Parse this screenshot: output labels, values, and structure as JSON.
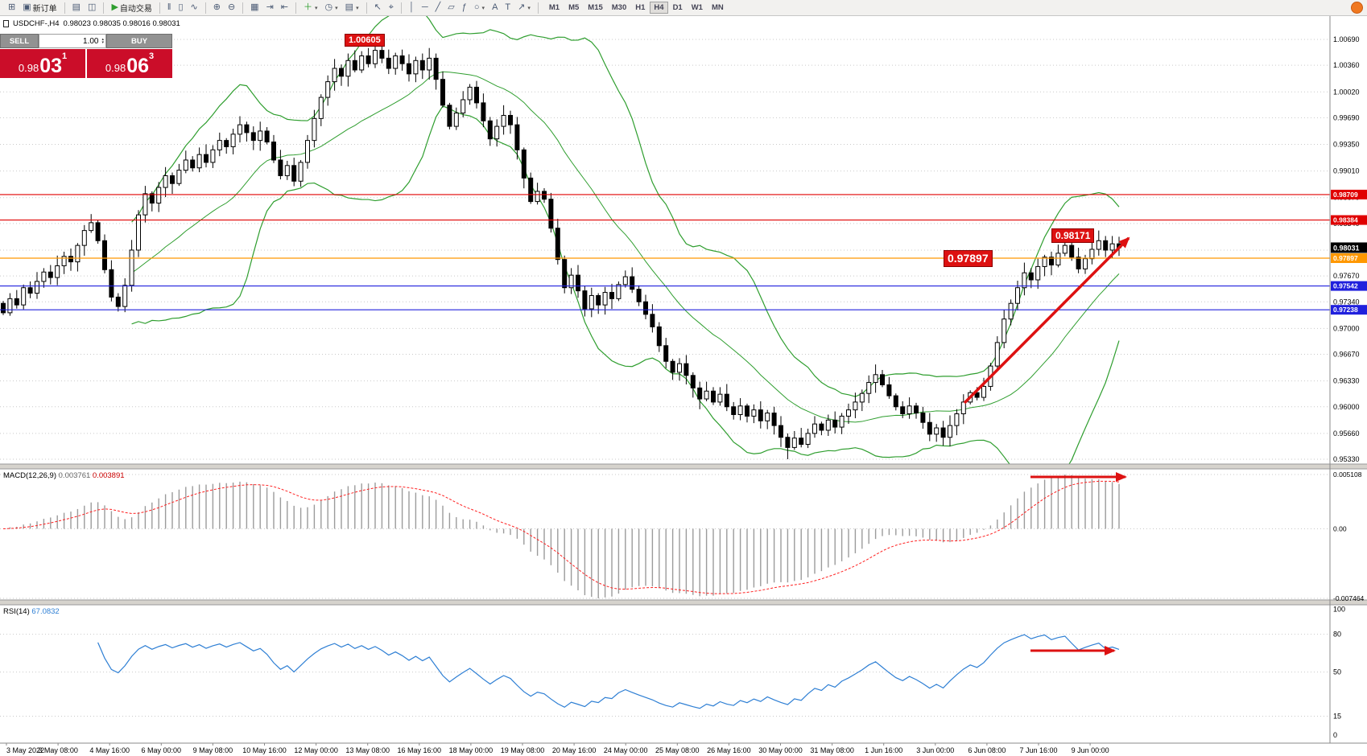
{
  "toolbar": {
    "caret_glyph": "▾",
    "groups": [
      {
        "items": [
          {
            "name": "new-chart",
            "glyph": "⊞"
          },
          {
            "name": "new-order",
            "glyph": "▣",
            "label": "新订单"
          }
        ]
      },
      {
        "items": [
          {
            "name": "profiles",
            "glyph": "▤"
          },
          {
            "name": "market-watch",
            "glyph": "◫"
          }
        ]
      },
      {
        "items": [
          {
            "name": "autotrading",
            "glyph": "▶",
            "glyph_color": "#2e9e2e",
            "label": "自动交易"
          }
        ]
      },
      {
        "items": [
          {
            "name": "chart-bars",
            "glyph": "‖"
          },
          {
            "name": "chart-candles",
            "glyph": "▯"
          },
          {
            "name": "chart-line",
            "glyph": "∿"
          }
        ]
      },
      {
        "items": [
          {
            "name": "zoom-in",
            "glyph": "⊕"
          },
          {
            "name": "zoom-out",
            "glyph": "⊖"
          }
        ]
      },
      {
        "items": [
          {
            "name": "tile-windows",
            "glyph": "▦"
          },
          {
            "name": "auto-scroll",
            "glyph": "⇥"
          },
          {
            "name": "chart-shift",
            "glyph": "⇤"
          }
        ]
      },
      {
        "items": [
          {
            "name": "indicators",
            "glyph": "＋",
            "glyph_color": "#2e9e2e",
            "dropdown": true
          },
          {
            "name": "periods",
            "glyph": "◷",
            "dropdown": true
          },
          {
            "name": "templates",
            "glyph": "▤",
            "dropdown": true
          }
        ]
      },
      {
        "items": [
          {
            "name": "cursor",
            "glyph": "↖"
          },
          {
            "name": "crosshair",
            "glyph": "⌖"
          }
        ]
      },
      {
        "items": [
          {
            "name": "vertical-line",
            "glyph": "│"
          },
          {
            "name": "horizontal-line",
            "glyph": "─"
          },
          {
            "name": "trendline",
            "glyph": "╱"
          },
          {
            "name": "channel",
            "glyph": "▱"
          },
          {
            "name": "fibonacci",
            "glyph": "ƒ"
          },
          {
            "name": "shapes",
            "glyph": "○",
            "dropdown": true
          },
          {
            "name": "text",
            "glyph": "A"
          },
          {
            "name": "text-label",
            "glyph": "T"
          },
          {
            "name": "arrows",
            "glyph": "↗",
            "dropdown": true
          }
        ]
      }
    ],
    "timeframes": [
      "M1",
      "M5",
      "M15",
      "M30",
      "H1",
      "H4",
      "D1",
      "W1",
      "MN"
    ],
    "active_timeframe": "H4"
  },
  "symbol_bar": {
    "symbol": "USDCHF-,H4",
    "ohlc": "0.98023 0.98035 0.98016 0.98031"
  },
  "trade_panel": {
    "sell_label": "SELL",
    "buy_label": "BUY",
    "lot": "1.00",
    "spin_up": "▴",
    "spin_down": "▾",
    "sell_price": {
      "big": "0.98",
      "mid": "03",
      "sup": "1"
    },
    "buy_price": {
      "big": "0.98",
      "mid": "06",
      "sup": "3"
    }
  },
  "colors": {
    "grid": "#c9c9c9",
    "bull": "#ffffff",
    "bear": "#000000",
    "wick": "#000000",
    "band": "#2f9e2f",
    "macd_hist": "#9b9b9b",
    "macd_signal": "#ff2020",
    "rsi_line": "#2e7fd4",
    "annotation_red": "#dd1111",
    "trade_red": "#cb0d29",
    "axis_line": "#8a8a8a"
  },
  "bollinger": {
    "period": 20,
    "deviation": 2,
    "color": "#2f9e2f"
  },
  "chart": {
    "price_axis": {
      "max": 1.0069,
      "min": 0.9533
    },
    "price_ticks": [
      "1.00690",
      "1.00360",
      "1.00020",
      "0.99690",
      "0.99350",
      "0.99010",
      "0.98670",
      "0.98340",
      "0.98000",
      "0.97670",
      "0.97340",
      "0.97000",
      "0.96670",
      "0.96330",
      "0.96000",
      "0.95660",
      "0.95330"
    ],
    "markers": [
      {
        "label": "0.98709",
        "price": 0.98709,
        "color": "#e00000"
      },
      {
        "label": "0.98384",
        "price": 0.98384,
        "color": "#e00000"
      },
      {
        "label": "0.97897",
        "price": 0.97897,
        "color": "#ff9800"
      },
      {
        "label": "0.97542",
        "price": 0.97542,
        "color": "#2020dd"
      },
      {
        "label": "0.97238",
        "price": 0.97238,
        "color": "#2020dd"
      }
    ],
    "current_price": {
      "label": "0.98031",
      "price": 0.98031
    },
    "annotations": {
      "high": "1.00605",
      "support": "0.97897",
      "breakout": "0.98171"
    },
    "extremes": {
      "peak_high": 1.00605,
      "trough_low": 0.9533,
      "last_high": 0.98171
    },
    "candles_close": [
      0.972,
      0.9738,
      0.973,
      0.9752,
      0.9745,
      0.976,
      0.9772,
      0.9765,
      0.978,
      0.9792,
      0.9785,
      0.9806,
      0.9825,
      0.9835,
      0.9812,
      0.9775,
      0.974,
      0.9728,
      0.9755,
      0.98,
      0.9845,
      0.9872,
      0.986,
      0.988,
      0.9895,
      0.9885,
      0.9902,
      0.9915,
      0.9905,
      0.9922,
      0.9912,
      0.9928,
      0.994,
      0.9932,
      0.9948,
      0.996,
      0.995,
      0.994,
      0.9952,
      0.9938,
      0.9915,
      0.9895,
      0.9908,
      0.9888,
      0.9912,
      0.994,
      0.9968,
      0.9995,
      1.0015,
      1.0032,
      1.0022,
      1.0042,
      1.003,
      1.0048,
      1.0038,
      1.0055,
      1.0045,
      1.0032,
      1.0048,
      1.0038,
      1.0025,
      1.0042,
      1.003,
      1.0045,
      1.0018,
      0.9985,
      0.9958,
      0.9975,
      0.9992,
      1.0008,
      0.9988,
      0.9965,
      0.9942,
      0.9958,
      0.9972,
      0.996,
      0.9928,
      0.9892,
      0.9862,
      0.9875,
      0.9865,
      0.9828,
      0.9788,
      0.9752,
      0.9768,
      0.9748,
      0.9725,
      0.9742,
      0.973,
      0.9746,
      0.9738,
      0.9756,
      0.9766,
      0.975,
      0.9734,
      0.9718,
      0.9702,
      0.9678,
      0.9658,
      0.9644,
      0.9655,
      0.964,
      0.9624,
      0.961,
      0.962,
      0.9606,
      0.9616,
      0.96,
      0.959,
      0.9601,
      0.9588,
      0.9596,
      0.9582,
      0.9592,
      0.9576,
      0.9561,
      0.9548,
      0.956,
      0.9552,
      0.9566,
      0.9578,
      0.957,
      0.9583,
      0.9574,
      0.9588,
      0.9596,
      0.9606,
      0.9617,
      0.9631,
      0.9641,
      0.9628,
      0.9614,
      0.96,
      0.9591,
      0.9601,
      0.9592,
      0.958,
      0.9565,
      0.9573,
      0.9561,
      0.9576,
      0.9591,
      0.9606,
      0.9618,
      0.9612,
      0.9626,
      0.9652,
      0.9682,
      0.9712,
      0.9732,
      0.9752,
      0.9771,
      0.9762,
      0.9779,
      0.9791,
      0.9781,
      0.9796,
      0.9806,
      0.9791,
      0.9776,
      0.9789,
      0.9801,
      0.9812,
      0.98,
      0.9808,
      0.98031
    ],
    "x_ticks": [
      "3 May 2022",
      "3 May 08:00",
      "4 May 16:00",
      "6 May 00:00",
      "9 May 08:00",
      "10 May 16:00",
      "12 May 00:00",
      "13 May 08:00",
      "16 May 16:00",
      "18 May 00:00",
      "19 May 08:00",
      "20 May 16:00",
      "24 May 00:00",
      "25 May 08:00",
      "26 May 16:00",
      "30 May 00:00",
      "31 May 08:00",
      "1 Jun 16:00",
      "3 Jun 00:00",
      "6 Jun 08:00",
      "7 Jun 16:00",
      "9 Jun 00:00"
    ]
  },
  "macd": {
    "name": "MACD(12,26,9)",
    "value_main": "0.003761",
    "value_signal": "0.003891",
    "params": {
      "fast": 12,
      "slow": 26,
      "signal": 9
    },
    "scale_top": "0.005108",
    "scale_zero": "0.00",
    "scale_bottom": "-0.007464"
  },
  "rsi": {
    "name": "RSI(14)",
    "value": "67.0832",
    "period": 14,
    "scale_top": "100",
    "scale_bottom": "0",
    "levels": [
      {
        "label": "80",
        "value": 80
      },
      {
        "label": "50",
        "value": 50
      },
      {
        "label": "15",
        "value": 15
      }
    ]
  }
}
